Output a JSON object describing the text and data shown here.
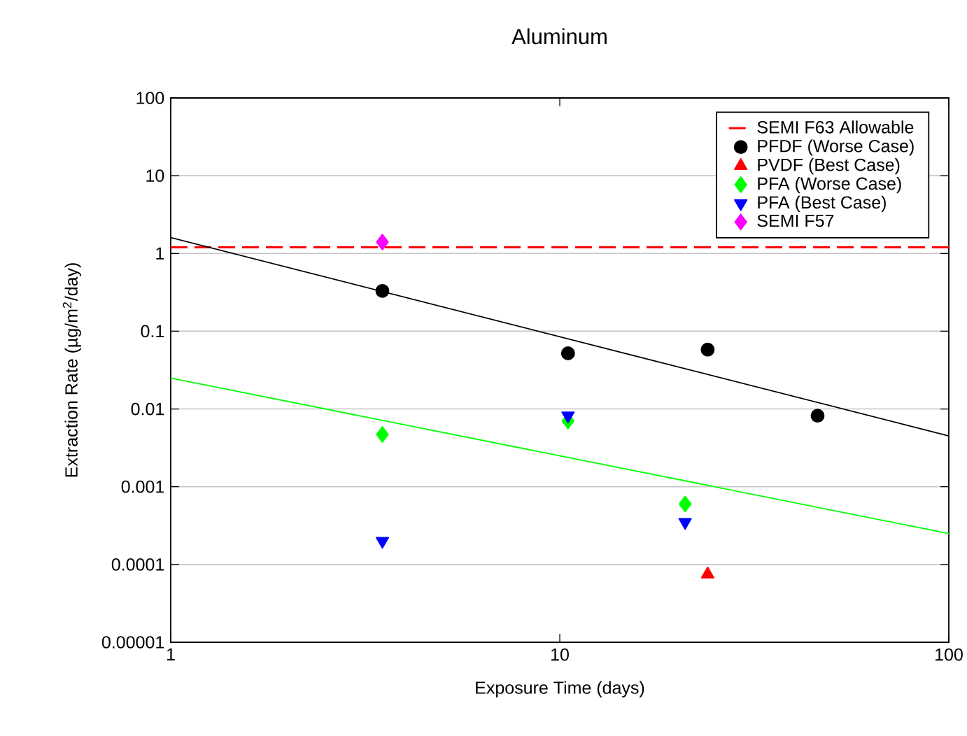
{
  "chart_data": {
    "type": "scatter",
    "title": "Aluminum",
    "xlabel": "Exposure Time (days)",
    "ylabel": "Extraction Rate (µg/m$^{2}$/day)",
    "log": "xy",
    "grid": "y",
    "legend": "top right",
    "xlim": [
      1,
      100
    ],
    "xticks": [
      1,
      10,
      100
    ],
    "ylim": [
      1e-05,
      100
    ],
    "yticks": [
      {
        "value": 1e-05,
        "label": "0.00001"
      },
      {
        "value": 0.0001,
        "label": "0.0001"
      },
      {
        "value": 0.001,
        "label": "0.001"
      },
      {
        "value": 0.01,
        "label": "0.01"
      },
      {
        "value": 0.1,
        "label": "0.1"
      },
      {
        "value": 1,
        "label": "1"
      },
      {
        "value": 10,
        "label": "10"
      },
      {
        "value": 100,
        "label": "100"
      }
    ],
    "ref_lines": [
      {
        "axis": "y",
        "value": 1.2,
        "label": "SEMI F63 Allowable",
        "color": "#ff0000",
        "line_style": "dashed"
      }
    ],
    "series": [
      {
        "name": "PFDF (Worse Case)",
        "marker": "circle",
        "color": "#000000",
        "x": [
          3.5,
          10.5,
          24,
          46
        ],
        "values": [
          0.33,
          0.052,
          0.058,
          0.0082
        ]
      },
      {
        "name": "PVDF (Best Case)",
        "marker": "triangle",
        "color": "#ff0000",
        "x": [
          24
        ],
        "values": [
          7.5e-05
        ]
      },
      {
        "name": "PFA (Worse Case)",
        "marker": "diamond",
        "color": "#00ff00",
        "x": [
          3.5,
          10.5,
          21
        ],
        "values": [
          0.0047,
          0.007,
          0.0006
        ]
      },
      {
        "name": "PFA (Best Case)",
        "marker": "triangle-down",
        "color": "#0000ff",
        "x": [
          3.5,
          10.5,
          21
        ],
        "values": [
          0.0002,
          0.0082,
          0.00035
        ]
      },
      {
        "name": "SEMI F57",
        "marker": "diamond",
        "color": "#ff00ff",
        "x": [
          3.5
        ],
        "values": [
          1.4
        ]
      },
      {
        "type": "line",
        "marker": "none",
        "color": "#000000",
        "x": [
          1,
          100
        ],
        "values": [
          1.6,
          0.0045
        ]
      },
      {
        "type": "line",
        "marker": "none",
        "color": "#00ff00",
        "x": [
          1,
          100
        ],
        "values": [
          0.025,
          0.00025
        ]
      }
    ]
  }
}
